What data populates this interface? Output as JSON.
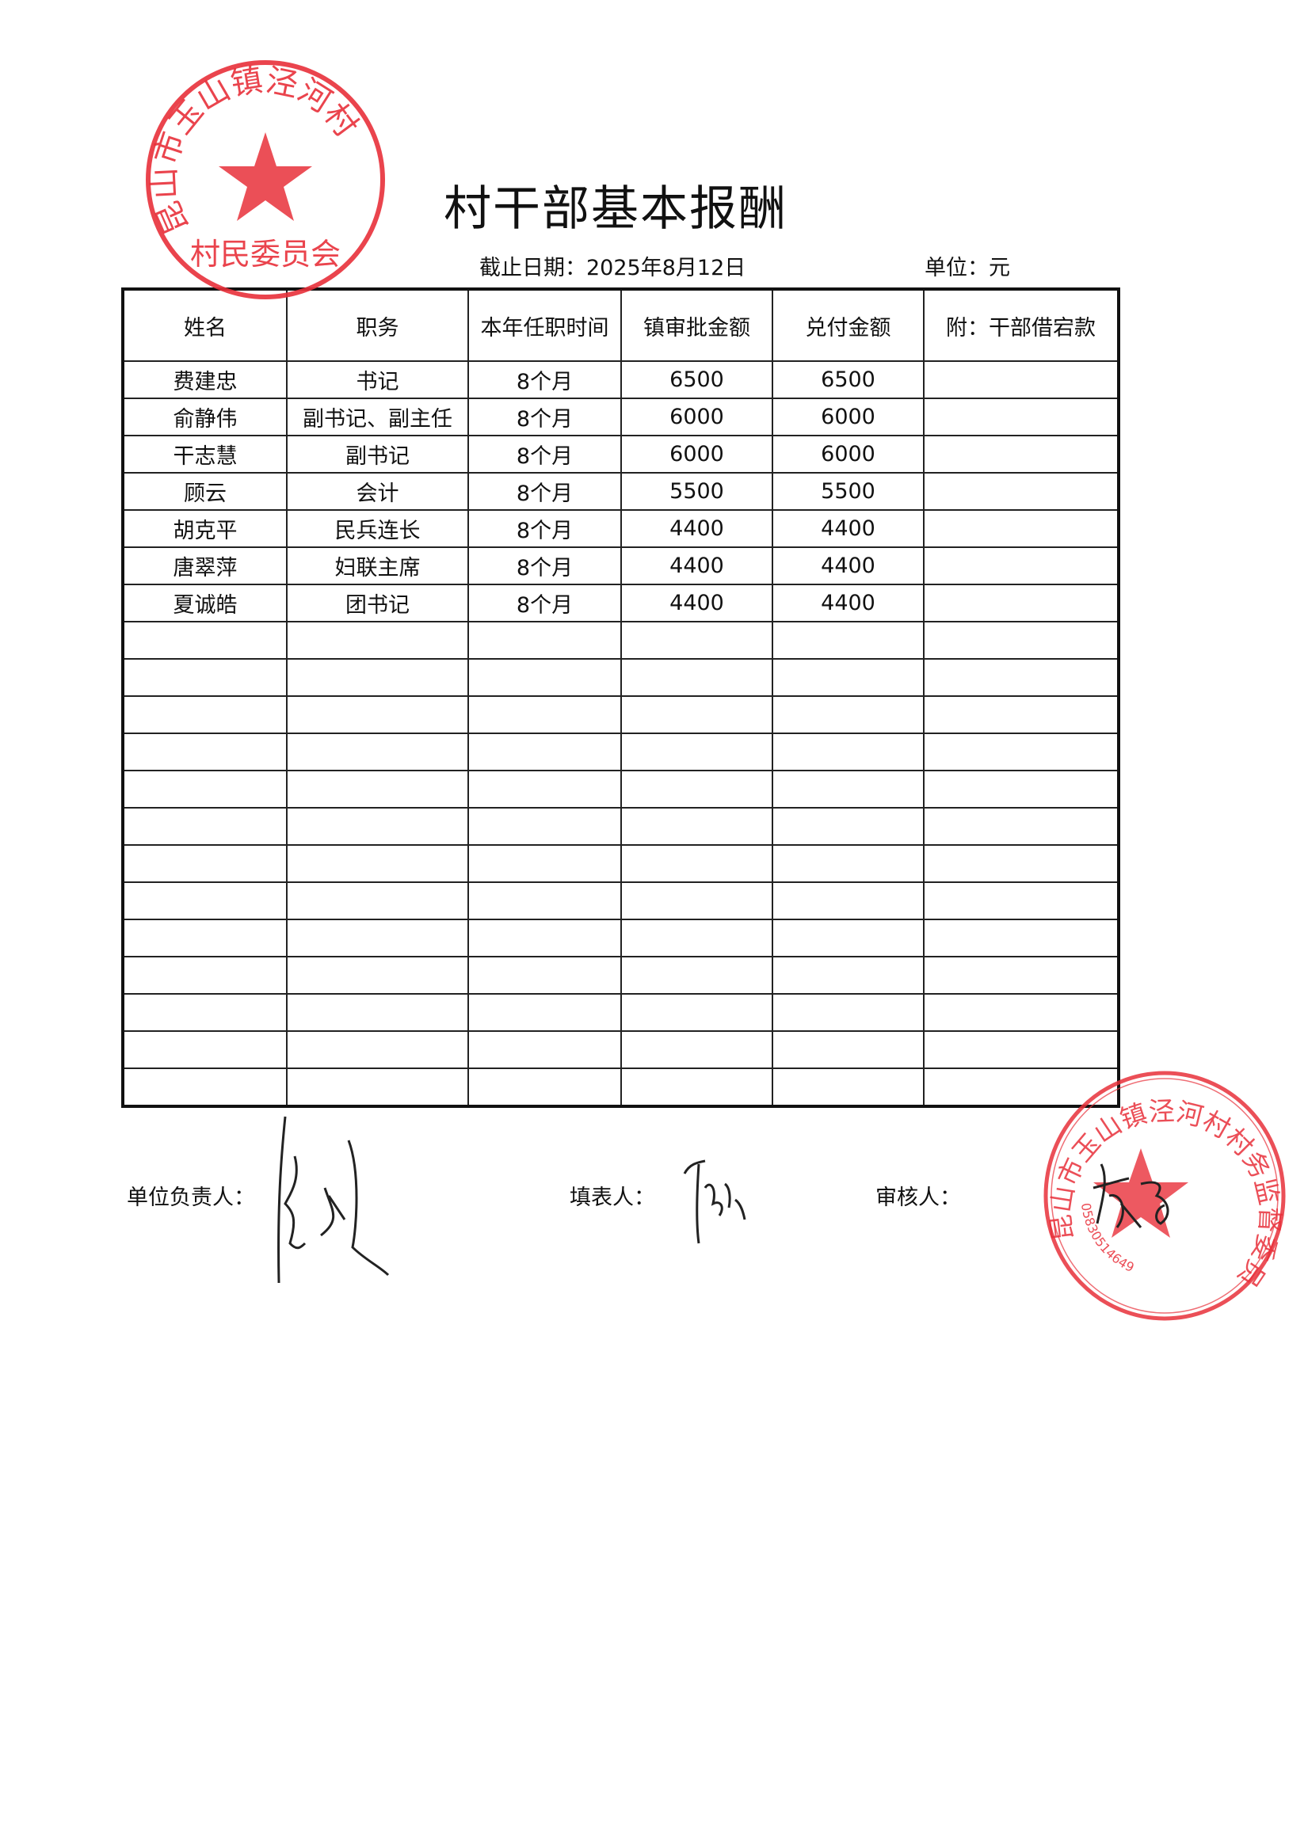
{
  "title": "村干部基本报酬",
  "deadline": "截止日期：2025年8月12日",
  "unit": "单位：元",
  "table": {
    "headers": [
      "姓名",
      "职务",
      "本年任职时间",
      "镇审批金额",
      "兑付金额",
      "附：干部借宕款"
    ],
    "rows": [
      [
        "费建忠",
        "书记",
        "8个月",
        "6500",
        "6500",
        ""
      ],
      [
        "俞静伟",
        "副书记、副主任",
        "8个月",
        "6000",
        "6000",
        ""
      ],
      [
        "干志慧",
        "副书记",
        "8个月",
        "6000",
        "6000",
        ""
      ],
      [
        "顾云",
        "会计",
        "8个月",
        "5500",
        "5500",
        ""
      ],
      [
        "胡克平",
        "民兵连长",
        "8个月",
        "4400",
        "4400",
        ""
      ],
      [
        "唐翠萍",
        "妇联主席",
        "8个月",
        "4400",
        "4400",
        ""
      ],
      [
        "夏诚皓",
        "团书记",
        "8个月",
        "4400",
        "4400",
        ""
      ]
    ],
    "blank_rows": 13
  },
  "signatures": {
    "leader_label": "单位负责人：",
    "filler_label": "填表人：",
    "reviewer_label": "审核人："
  },
  "stamps": {
    "top": {
      "arc_text": "昆山市玉山镇泾河村",
      "bottom_text": "村民委员会",
      "color": "#e8303a"
    },
    "bottom": {
      "arc_text": "昆山市玉山镇泾河村村务监督委员会",
      "code": "05830514649",
      "color": "#e8303a"
    }
  }
}
